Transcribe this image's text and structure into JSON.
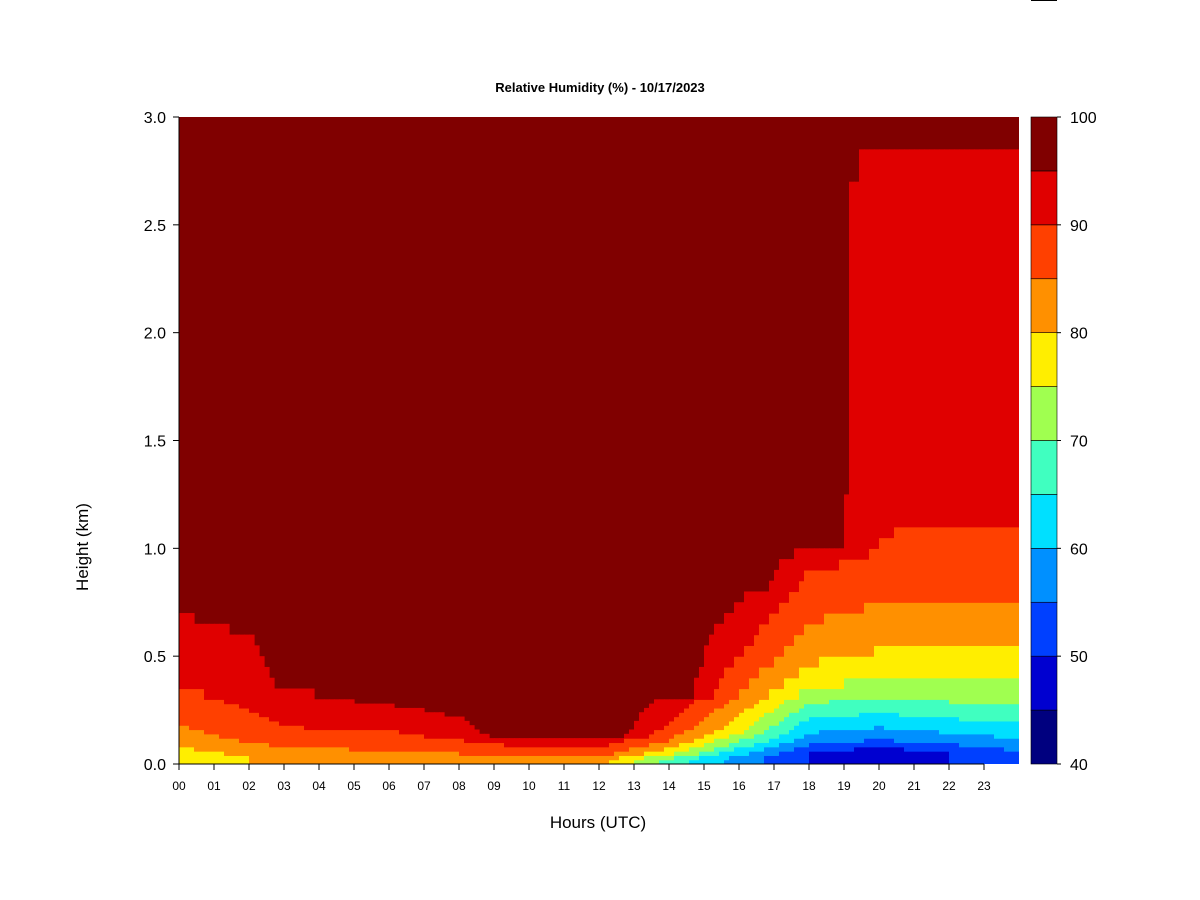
{
  "chart_data": {
    "type": "heatmap",
    "title": "Relative Humidity (%) - 10/17/2023",
    "xlabel": "Hours (UTC)",
    "ylabel": "Height (km)",
    "x_ticks": [
      "00",
      "01",
      "02",
      "03",
      "04",
      "05",
      "06",
      "07",
      "08",
      "09",
      "10",
      "11",
      "12",
      "13",
      "14",
      "15",
      "16",
      "17",
      "18",
      "19",
      "20",
      "21",
      "22",
      "23"
    ],
    "xlim": [
      0,
      24
    ],
    "y_ticks": [
      "0.0",
      "0.5",
      "1.0",
      "1.5",
      "2.0",
      "2.5",
      "3.0"
    ],
    "ylim": [
      0,
      3.0
    ],
    "colorbar": {
      "range": [
        40,
        100
      ],
      "tick_labels": [
        "100",
        "90",
        "80",
        "70",
        "60",
        "50",
        "40"
      ],
      "levels": [
        40,
        45,
        50,
        55,
        60,
        65,
        70,
        75,
        80,
        85,
        90,
        95,
        100
      ],
      "colors": [
        "#00007f",
        "#0000d0",
        "#0040ff",
        "#0090ff",
        "#00e0ff",
        "#40ffc0",
        "#a0ff50",
        "#ffee00",
        "#ff9000",
        "#ff4000",
        "#e00000",
        "#800000"
      ]
    },
    "background_value": 100,
    "profiles": [
      {
        "hour": 0,
        "heights_km": [
          0.05,
          0.12,
          0.2,
          0.35,
          0.6,
          0.9,
          2.85
        ],
        "rh": [
          78,
          82,
          86,
          90,
          94,
          97,
          97
        ]
      },
      {
        "hour": 2,
        "heights_km": [
          0.04,
          0.08,
          0.15,
          0.3,
          0.5,
          0.8,
          2.88
        ],
        "rh": [
          80,
          84,
          88,
          91,
          94,
          97,
          97
        ]
      },
      {
        "hour": 4,
        "heights_km": [
          0.03,
          0.06,
          0.12,
          0.2,
          0.35
        ],
        "rh": [
          80,
          84,
          88,
          92,
          96
        ]
      },
      {
        "hour": 6,
        "heights_km": [
          0.03,
          0.06,
          0.12,
          0.2,
          0.3
        ],
        "rh": [
          80,
          85,
          88,
          92,
          96
        ]
      },
      {
        "hour": 8,
        "heights_km": [
          0.02,
          0.05,
          0.1,
          0.15,
          0.25
        ],
        "rh": [
          80,
          85,
          89,
          93,
          96
        ]
      },
      {
        "hour": 10,
        "heights_km": [
          0.02,
          0.04,
          0.08,
          0.12
        ],
        "rh": [
          82,
          86,
          90,
          94
        ]
      },
      {
        "hour": 12,
        "heights_km": [
          0.02,
          0.04,
          0.08,
          0.12
        ],
        "rh": [
          82,
          86,
          90,
          94
        ]
      },
      {
        "hour": 14,
        "heights_km": [
          0.02,
          0.05,
          0.1,
          0.18,
          0.3
        ],
        "rh": [
          68,
          76,
          84,
          90,
          94
        ]
      },
      {
        "hour": 16,
        "heights_km": [
          0.03,
          0.08,
          0.15,
          0.3,
          0.5,
          0.8
        ],
        "rh": [
          58,
          66,
          76,
          84,
          90,
          96
        ]
      },
      {
        "hour": 18,
        "heights_km": [
          0.05,
          0.12,
          0.25,
          0.4,
          0.6,
          0.9,
          1.0
        ],
        "rh": [
          50,
          58,
          68,
          78,
          84,
          90,
          95
        ]
      },
      {
        "hour": 20,
        "heights_km": [
          0.05,
          0.12,
          0.25,
          0.45,
          0.7,
          1.0,
          2.85
        ],
        "rh": [
          46,
          56,
          66,
          78,
          84,
          90,
          93
        ]
      },
      {
        "hour": 22,
        "heights_km": [
          0.05,
          0.12,
          0.25,
          0.45,
          0.7,
          1.1,
          2.85
        ],
        "rh": [
          50,
          58,
          68,
          78,
          84,
          90,
          93
        ]
      },
      {
        "hour": 24,
        "heights_km": [
          0.05,
          0.12,
          0.25,
          0.45,
          0.7,
          1.1,
          2.85
        ],
        "rh": [
          54,
          60,
          68,
          78,
          84,
          90,
          93
        ]
      }
    ]
  }
}
